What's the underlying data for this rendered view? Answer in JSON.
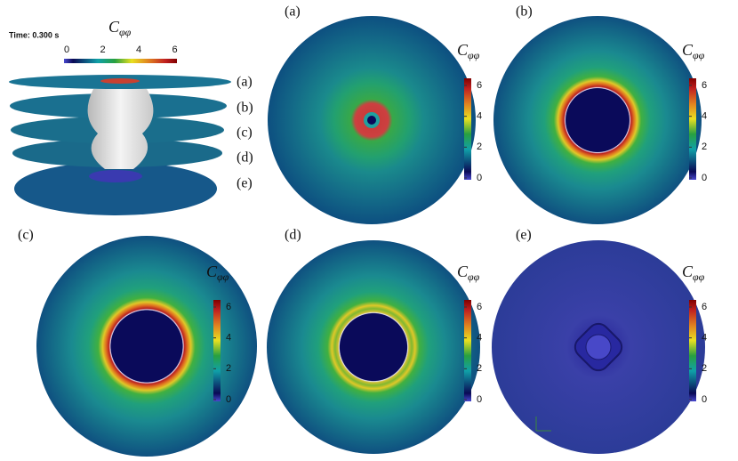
{
  "overview": {
    "time_label": "Time: 0.300 s",
    "colorbar_title": {
      "symbol": "C",
      "subscript": "φφ"
    },
    "colorbar_ticks": [
      "0",
      "2",
      "4",
      "6"
    ],
    "slice_labels": [
      "(a)",
      "(b)",
      "(c)",
      "(d)",
      "(e)"
    ]
  },
  "panels": [
    {
      "label": "(a)",
      "colorbar_title": {
        "symbol": "C",
        "subscript": "φφ"
      },
      "colorbar_ticks": [
        "0",
        "2",
        "4",
        "6"
      ]
    },
    {
      "label": "(b)",
      "colorbar_title": {
        "symbol": "C",
        "subscript": "φφ"
      },
      "colorbar_ticks": [
        "0",
        "2",
        "4",
        "6"
      ]
    },
    {
      "label": "(c)",
      "colorbar_title": {
        "symbol": "C",
        "subscript": "φφ"
      },
      "colorbar_ticks": [
        "0",
        "2",
        "4",
        "6"
      ]
    },
    {
      "label": "(d)",
      "colorbar_title": {
        "symbol": "C",
        "subscript": "φφ"
      },
      "colorbar_ticks": [
        "0",
        "2",
        "4",
        "6"
      ]
    },
    {
      "label": "(e)",
      "colorbar_title": {
        "symbol": "C",
        "subscript": "φφ"
      },
      "colorbar_ticks": [
        "0",
        "2",
        "4",
        "6"
      ]
    }
  ]
}
